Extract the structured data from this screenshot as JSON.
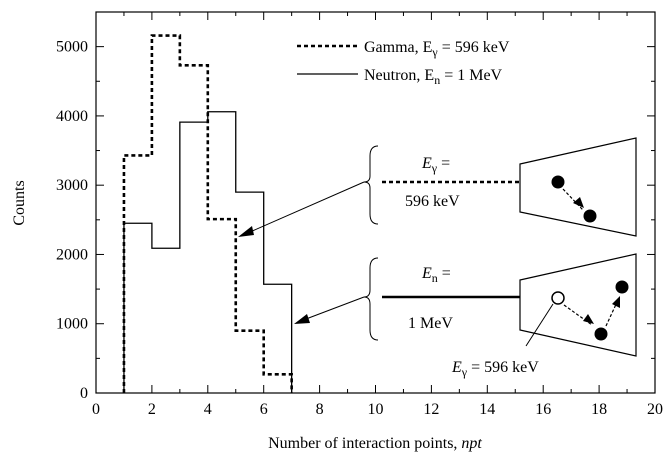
{
  "chart_data": {
    "type": "histogram",
    "x_label": "Number of interaction points, ",
    "x_label_italic": "npt",
    "y_label": "Counts",
    "xlim": [
      0,
      20
    ],
    "ylim": [
      0,
      5500
    ],
    "x_ticks": [
      "0",
      "2",
      "4",
      "6",
      "8",
      "10",
      "12",
      "14",
      "16",
      "18",
      "20"
    ],
    "y_ticks": [
      "0",
      "1000",
      "2000",
      "3000",
      "4000",
      "5000"
    ],
    "grid": false,
    "legend_position": "top-right",
    "series": [
      {
        "name": "Gamma, E",
        "name_sub": "γ",
        "name_tail": " = 596 keV",
        "style": "dotted",
        "bin_edges": [
          1,
          2,
          3,
          4,
          5,
          6,
          7
        ],
        "values": [
          3430,
          5160,
          4730,
          2510,
          900,
          270
        ]
      },
      {
        "name": "Neutron, E",
        "name_sub": "n",
        "name_tail": " = 1 MeV",
        "style": "solid",
        "bin_edges": [
          1,
          2,
          3,
          4,
          5,
          6,
          7
        ],
        "values": [
          2450,
          2090,
          3910,
          4060,
          2900,
          1570
        ]
      }
    ],
    "annotations": {
      "gamma_label_top_main": "E",
      "gamma_label_top_sub": "γ",
      "gamma_label_top_tail": " =",
      "gamma_label_bottom": "596 keV",
      "neutron_label_top_main": "E",
      "neutron_label_top_sub": "n",
      "neutron_label_top_tail": " =",
      "neutron_label_bottom": "1 MeV",
      "scatter_label_main": "E",
      "scatter_label_sub": "γ",
      "scatter_label_tail": " = 596 keV"
    }
  }
}
